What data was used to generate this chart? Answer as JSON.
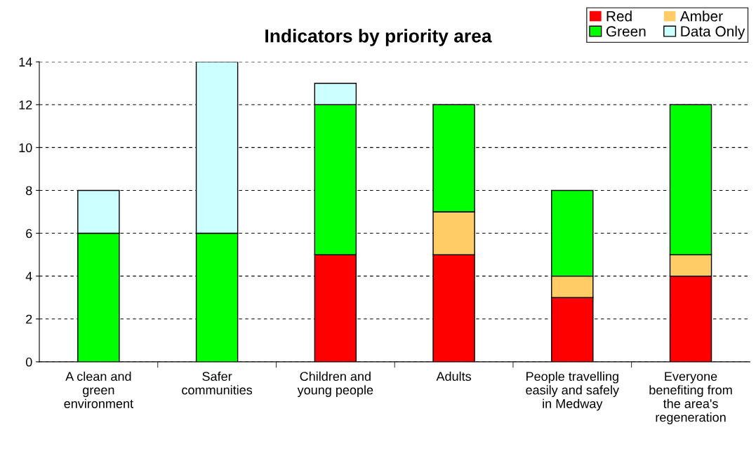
{
  "chart_data": {
    "type": "bar",
    "title": "Indicators by priority area",
    "stacked": true,
    "categories": [
      "A clean and\ngreen\nenvironment",
      "Safer\ncommunities",
      "Children and\nyoung people",
      "Adults",
      "People travelling\neasily and safely\nin Medway",
      "Everyone\nbenefiting from\nthe area's\nregeneration"
    ],
    "series": [
      {
        "name": "Red",
        "color": "#ff0000",
        "values": [
          0,
          0,
          5,
          5,
          3,
          4
        ]
      },
      {
        "name": "Amber",
        "color": "#ffcc66",
        "values": [
          0,
          0,
          0,
          2,
          1,
          1
        ]
      },
      {
        "name": "Green",
        "color": "#00ff00",
        "values": [
          6,
          6,
          7,
          5,
          4,
          7
        ]
      },
      {
        "name": "Data Only",
        "color": "#ccffff",
        "values": [
          2,
          8,
          1,
          0,
          0,
          0
        ]
      }
    ],
    "ylim": [
      0,
      14
    ],
    "yticks": [
      0,
      2,
      4,
      6,
      8,
      10,
      12,
      14
    ],
    "grid": "y",
    "legend": "top right"
  }
}
